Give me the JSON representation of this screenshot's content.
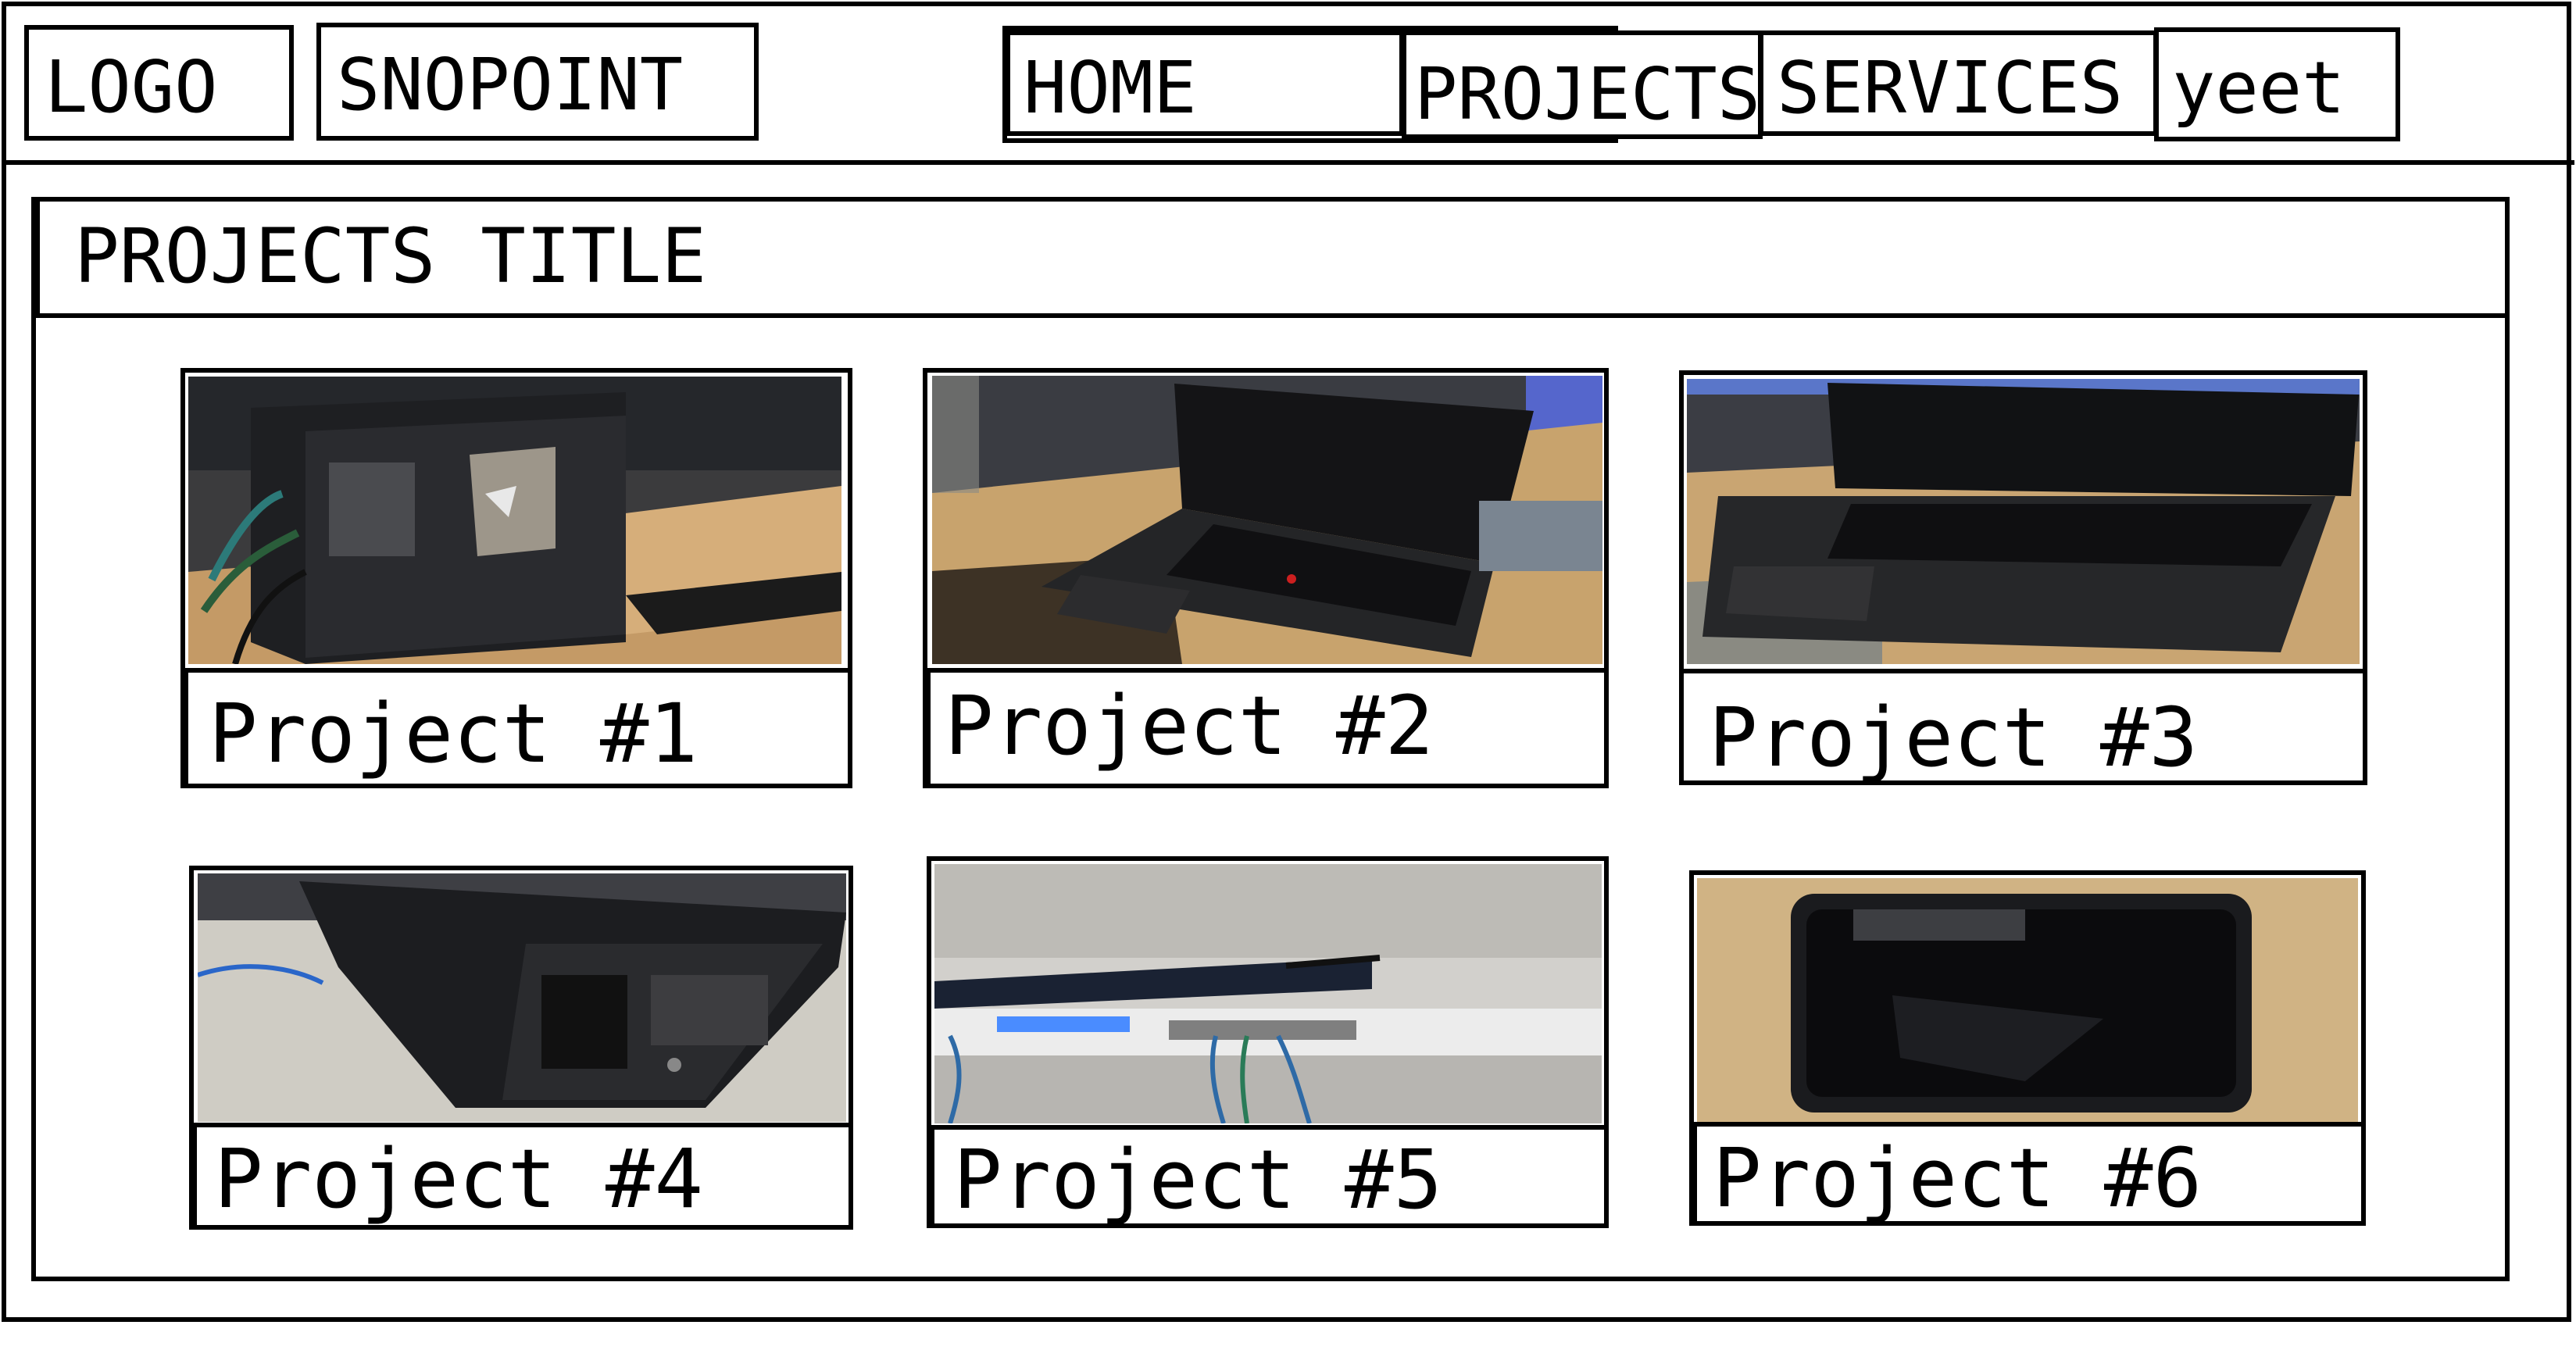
{
  "header": {
    "logo_label": "LOGO",
    "site_name": "SNOPOINT",
    "nav": [
      {
        "label": "HOME"
      },
      {
        "label": "PROJECTS"
      },
      {
        "label": "SERVICES"
      },
      {
        "label": "yeet"
      }
    ]
  },
  "main": {
    "section_title": "PROJECTS TITLE",
    "projects": [
      {
        "title": "Project #1",
        "image": "desktop-pc-case-photo"
      },
      {
        "title": "Project #2",
        "image": "thinkpad-laptop-photo"
      },
      {
        "title": "Project #3",
        "image": "thinkpad-laptop-photo"
      },
      {
        "title": "Project #4",
        "image": "tower-server-photo"
      },
      {
        "title": "Project #5",
        "image": "rack-network-appliance-photo"
      },
      {
        "title": "Project #6",
        "image": "smartphone-photo"
      }
    ]
  }
}
